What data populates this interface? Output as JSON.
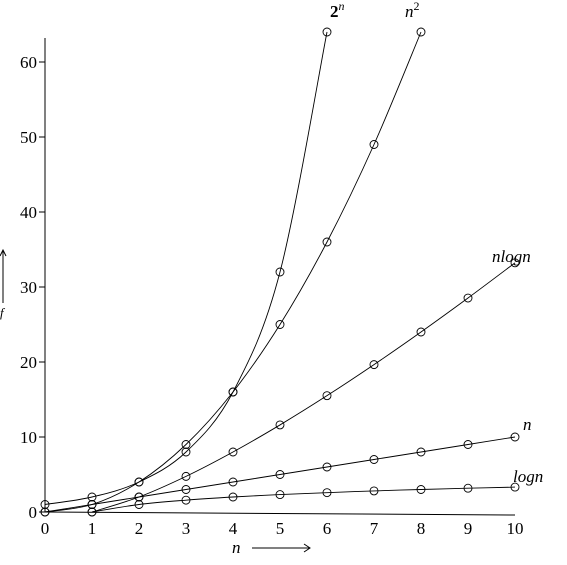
{
  "chart_data": {
    "type": "line",
    "title": "",
    "xlabel": "n",
    "ylabel": "f",
    "xlim": [
      0,
      10
    ],
    "ylim": [
      0,
      64
    ],
    "x_ticks": [
      "0",
      "1",
      "2",
      "3",
      "4",
      "5",
      "6",
      "7",
      "8",
      "9",
      "10"
    ],
    "y_ticks": [
      "0",
      "10",
      "20",
      "30",
      "40",
      "50",
      "60"
    ],
    "x_tick_values": [
      0,
      1,
      2,
      3,
      4,
      5,
      6,
      7,
      8,
      9,
      10
    ],
    "y_tick_values": [
      0,
      10,
      20,
      30,
      40,
      50,
      60
    ],
    "grid": false,
    "marker": "open-circle",
    "series": [
      {
        "name": "2^n",
        "label_base": "2",
        "label_sup": "n",
        "x": [
          0,
          1,
          2,
          3,
          4,
          5,
          6
        ],
        "y": [
          1,
          2,
          4,
          8,
          16,
          32,
          64
        ]
      },
      {
        "name": "n^2",
        "label_base": "n",
        "label_sup": "2",
        "x": [
          0,
          1,
          2,
          3,
          4,
          5,
          6,
          7,
          8
        ],
        "y": [
          0,
          1,
          4,
          9,
          16,
          25,
          36,
          49,
          64
        ]
      },
      {
        "name": "nlogn",
        "label_base": "nlogn",
        "label_sup": "",
        "x": [
          1,
          2,
          3,
          4,
          5,
          6,
          7,
          8,
          9,
          10
        ],
        "y": [
          0,
          2,
          4.75,
          8,
          11.61,
          15.51,
          19.65,
          24,
          28.53,
          33.22
        ]
      },
      {
        "name": "n",
        "label_base": "n",
        "label_sup": "",
        "x": [
          0,
          1,
          2,
          3,
          4,
          5,
          6,
          7,
          8,
          9,
          10
        ],
        "y": [
          0,
          1,
          2,
          3,
          4,
          5,
          6,
          7,
          8,
          9,
          10
        ]
      },
      {
        "name": "logn",
        "label_base": "logn",
        "label_sup": "",
        "x": [
          1,
          2,
          3,
          4,
          5,
          6,
          7,
          8,
          9,
          10
        ],
        "y": [
          0,
          1,
          1.58,
          2,
          2.32,
          2.58,
          2.81,
          3,
          3.17,
          3.32
        ]
      }
    ]
  }
}
